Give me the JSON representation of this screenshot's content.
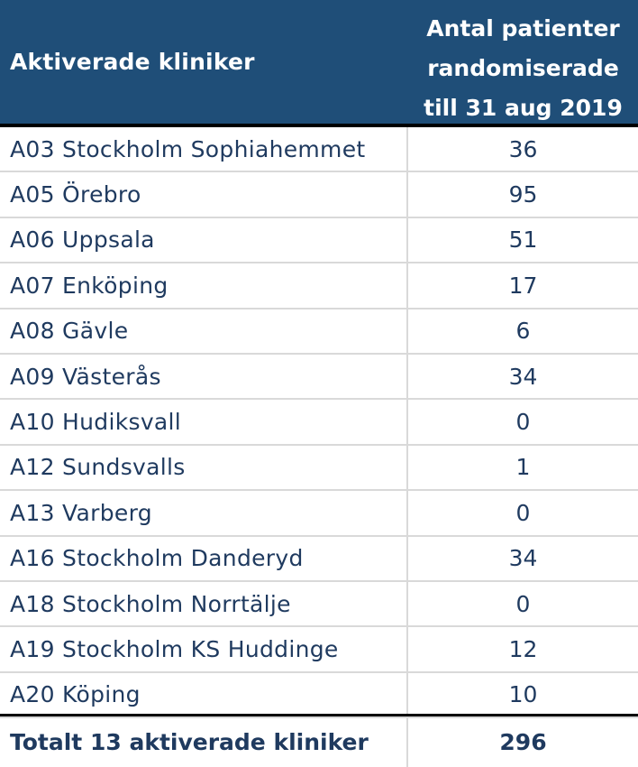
{
  "header": {
    "col1": "Aktiverade kliniker",
    "col2_lines": [
      "Antal patienter",
      "randomiserade",
      "till 31 aug 2019"
    ]
  },
  "rows": [
    {
      "name": "A03 Stockholm Sophiahemmet",
      "count": "36"
    },
    {
      "name": "A05 Örebro",
      "count": "95"
    },
    {
      "name": "A06 Uppsala",
      "count": "51"
    },
    {
      "name": "A07 Enköping",
      "count": "17"
    },
    {
      "name": "A08 Gävle",
      "count": "6"
    },
    {
      "name": "A09 Västerås",
      "count": "34"
    },
    {
      "name": "A10 Hudiksvall",
      "count": "0"
    },
    {
      "name": "A12 Sundsvalls",
      "count": "1"
    },
    {
      "name": "A13 Varberg",
      "count": "0"
    },
    {
      "name": "A16 Stockholm Danderyd",
      "count": "34"
    },
    {
      "name": "A18 Stockholm Norrtälje",
      "count": "0"
    },
    {
      "name": "A19 Stockholm KS Huddinge",
      "count": "12"
    },
    {
      "name": "A20 Köping",
      "count": "10"
    }
  ],
  "total": {
    "label": "Totalt 13 aktiverade kliniker",
    "count": "296"
  },
  "colors": {
    "header_bg": "#1f4e78",
    "header_text": "#ffffff",
    "body_text": "#1f3a5f",
    "grid": "#d9d9d9",
    "rule": "#000000"
  }
}
